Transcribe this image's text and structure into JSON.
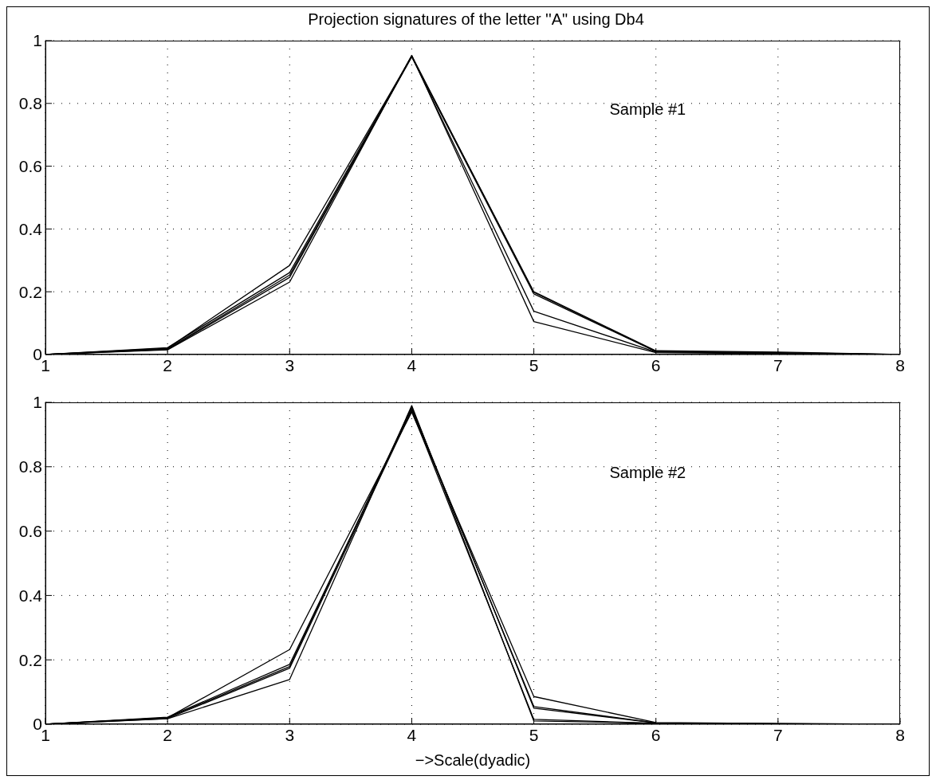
{
  "chart_data": [
    {
      "type": "line",
      "title": "Projection signatures of the letter ''A\" using Db4",
      "x": [
        1,
        2,
        3,
        4,
        5,
        6,
        7,
        8
      ],
      "series": [
        {
          "color": "#000000",
          "values": [
            0,
            0.02,
            0.284,
            0.95,
            0.2,
            0.012,
            0.008,
            0
          ]
        },
        {
          "color": "#000000",
          "values": [
            0,
            0.022,
            0.261,
            0.952,
            0.198,
            0.01,
            0.006,
            0
          ]
        },
        {
          "color": "#000000",
          "values": [
            0,
            0.018,
            0.253,
            0.948,
            0.193,
            0.01,
            0.005,
            0
          ]
        },
        {
          "color": "#000000",
          "values": [
            0,
            0.016,
            0.246,
            0.95,
            0.138,
            0.008,
            0.004,
            0
          ]
        },
        {
          "color": "#000000",
          "values": [
            0,
            0.015,
            0.231,
            0.953,
            0.105,
            0.006,
            0.003,
            0
          ]
        }
      ],
      "xlim": [
        1,
        8
      ],
      "ylim": [
        0,
        1
      ],
      "xticks": [
        1,
        2,
        3,
        4,
        5,
        6,
        7,
        8
      ],
      "yticks": [
        0,
        0.2,
        0.4,
        0.6,
        0.8,
        1
      ],
      "grid": true,
      "line_style": "solid",
      "marker": "none",
      "annotations": [
        "Sample #1"
      ]
    },
    {
      "type": "line",
      "xlabel": "−>Scale(dyadic)",
      "x": [
        1,
        2,
        3,
        4,
        5,
        6,
        7,
        8
      ],
      "series": [
        {
          "color": "#000000",
          "values": [
            0,
            0.02,
            0.232,
            0.97,
            0.086,
            0.005,
            0.002,
            0
          ]
        },
        {
          "color": "#000000",
          "values": [
            0,
            0.022,
            0.186,
            0.98,
            0.055,
            0.004,
            0.002,
            0
          ]
        },
        {
          "color": "#000000",
          "values": [
            0,
            0.02,
            0.179,
            0.985,
            0.05,
            0.004,
            0.001,
            0
          ]
        },
        {
          "color": "#000000",
          "values": [
            0,
            0.018,
            0.174,
            0.975,
            0.015,
            0.003,
            0.001,
            0
          ]
        },
        {
          "color": "#000000",
          "values": [
            0,
            0.017,
            0.139,
            0.99,
            0.01,
            0.003,
            0.001,
            0
          ]
        }
      ],
      "xlim": [
        1,
        8
      ],
      "ylim": [
        0,
        1
      ],
      "xticks": [
        1,
        2,
        3,
        4,
        5,
        6,
        7,
        8
      ],
      "yticks": [
        0,
        0.2,
        0.4,
        0.6,
        0.8,
        1
      ],
      "grid": true,
      "line_style": "solid",
      "marker": "none",
      "annotations": [
        "Sample #2"
      ]
    }
  ]
}
